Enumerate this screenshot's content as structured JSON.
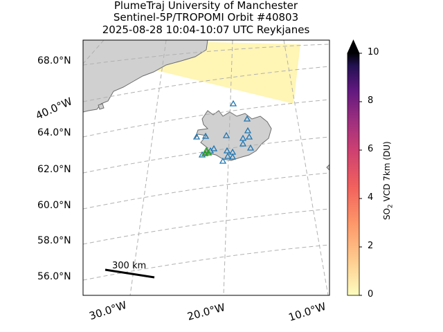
{
  "header": {
    "line1": "PlumeTraj    University of Manchester",
    "line2": "Sentinel-5P/TROPOMI Orbit #40803",
    "line3": "2025-08-28   10:04-10:07 UTC   Reykjanes"
  },
  "map": {
    "lat_labels": [
      "68.0°N",
      "64.0°N",
      "62.0°N",
      "60.0°N",
      "58.0°N",
      "56.0°N"
    ],
    "lon_labels": [
      "30.0°W",
      "20.0°W",
      "10.0°W",
      "40.0°W"
    ],
    "scale_bar_label": "300 km",
    "colors": {
      "land": "#d0d0d0",
      "coast": "#6b6b6b",
      "swath": "#fff5b5",
      "gridlines": "#b0b0b0",
      "volcano_markers": "#1f77b4",
      "source_markers": "#2ca02c"
    }
  },
  "colorbar": {
    "label_prefix": "SO",
    "label_sub": "2",
    "label_suffix": " VCD 7km (DU)",
    "ticks": [
      "10",
      "8",
      "6",
      "4",
      "2",
      "0"
    ],
    "min": 0,
    "max": 10,
    "extend": "max",
    "colormap": "magma_r"
  }
}
